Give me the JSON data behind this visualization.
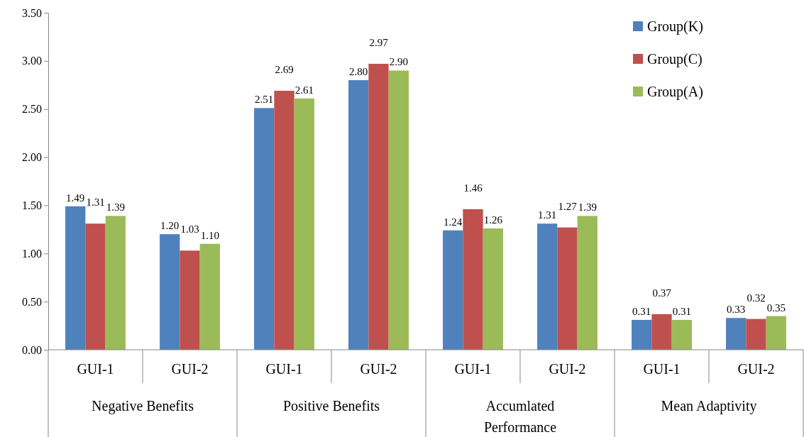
{
  "chart_data": {
    "type": "bar",
    "categories": [
      "GUI-1",
      "GUI-2",
      "GUI-1",
      "GUI-2",
      "GUI-1",
      "GUI-2",
      "GUI-1",
      "GUI-2"
    ],
    "annotations": [
      "Negative Benefits",
      "Positive Benefits",
      "Accumlated Performance",
      "Mean Adaptivity"
    ],
    "series": [
      {
        "name": "Group(K)",
        "color": "#4f81bd",
        "values": [
          1.49,
          1.2,
          2.51,
          2.8,
          1.24,
          1.31,
          0.31,
          0.33
        ],
        "value_labels": [
          "1.49",
          "1.20",
          "2.51",
          "2.80",
          "1.24",
          "1.31",
          "0.31",
          "0.33"
        ]
      },
      {
        "name": "Group(C)",
        "color": "#c0504d",
        "values": [
          1.31,
          1.03,
          2.69,
          2.97,
          1.46,
          1.27,
          0.37,
          0.32
        ],
        "value_labels": [
          "1.31",
          "1.03",
          "2.69",
          "2.97",
          "1.46",
          "1.27",
          "0.37",
          "0.32"
        ]
      },
      {
        "name": "Group(A)",
        "color": "#9bbb59",
        "values": [
          1.39,
          1.1,
          2.61,
          2.9,
          1.26,
          1.39,
          0.31,
          0.35
        ],
        "value_labels": [
          "1.39",
          "1.10",
          "2.61",
          "2.90",
          "1.26",
          "1.39",
          "0.31",
          "0.35"
        ]
      }
    ],
    "ylim": [
      0,
      3.5
    ],
    "yticks": [
      {
        "value": 0,
        "label": "0.00"
      },
      {
        "value": 0.5,
        "label": "0.50"
      },
      {
        "value": 1,
        "label": "1.00"
      },
      {
        "value": 1.5,
        "label": "1.50"
      },
      {
        "value": 2,
        "label": "2.00"
      },
      {
        "value": 2.5,
        "label": "2.50"
      },
      {
        "value": 3,
        "label": "3.00"
      },
      {
        "value": 3.5,
        "label": "3.50"
      }
    ],
    "grid": false,
    "legend": "top right"
  }
}
